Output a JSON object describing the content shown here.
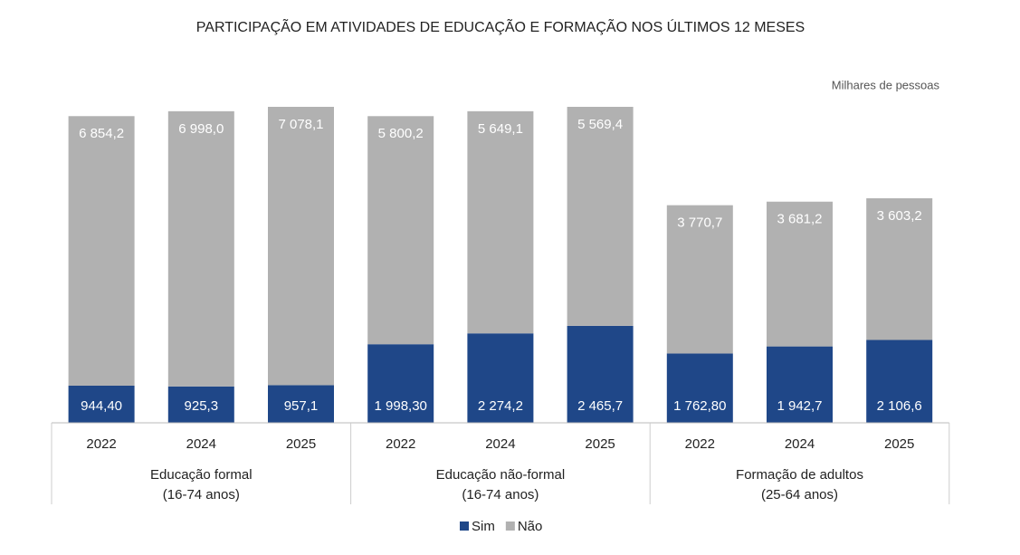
{
  "chart_data": {
    "type": "stacked-bar",
    "title": "PARTICIPAÇÃO EM ATIVIDADES DE EDUCAÇÃO E FORMAÇÃO NOS ÚLTIMOS 12 MESES",
    "unit_label": "Milhares de pessoas",
    "groups": [
      {
        "label": [
          "Educação formal",
          "(16-74 anos)"
        ],
        "categories": [
          "2022",
          "2024",
          "2025"
        ]
      },
      {
        "label": [
          "Educação não-formal",
          "(16-74 anos)"
        ],
        "categories": [
          "2022",
          "2024",
          "2025"
        ]
      },
      {
        "label": [
          "Formação de adultos",
          "(25-64 anos)"
        ],
        "categories": [
          "2022",
          "2024",
          "2025"
        ]
      }
    ],
    "series": [
      {
        "name": "Sim",
        "color": "#1f4788",
        "values": [
          944.4,
          925.3,
          957.1,
          1998.3,
          2274.2,
          2465.7,
          1762.8,
          1942.7,
          2106.6
        ],
        "value_labels": [
          "944,40",
          "925,3",
          "957,1",
          "1 998,30",
          "2 274,2",
          "2 465,7",
          "1 762,80",
          "1 942,7",
          "2 106,6"
        ]
      },
      {
        "name": "Não",
        "color": "#b1b1b1",
        "values": [
          6854.2,
          6998.0,
          7078.1,
          5800.2,
          5649.1,
          5569.4,
          3770.7,
          3681.2,
          3603.2
        ],
        "value_labels": [
          "6 854,2",
          "6 998,0",
          "7 078,1",
          "5 800,2",
          "5 649,1",
          "5 569,4",
          "3 770,7",
          "3 681,2",
          "3 603,2"
        ]
      }
    ]
  }
}
